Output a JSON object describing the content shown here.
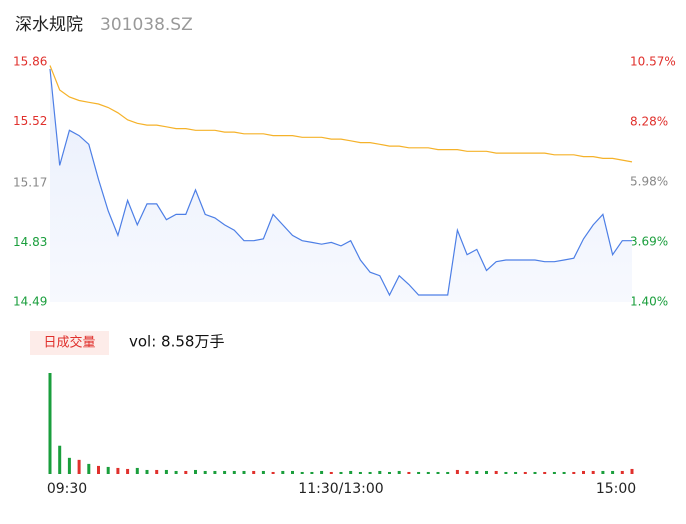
{
  "chart_data": [
    {
      "type": "line",
      "title": "深水规院",
      "subtitle": "301038.SZ",
      "x": [
        0,
        4,
        8,
        12,
        16,
        20,
        24,
        28,
        32,
        36,
        40,
        44,
        48,
        52,
        56,
        60,
        64,
        68,
        72,
        76,
        80,
        84,
        88,
        92,
        96,
        100,
        104,
        108,
        112,
        116,
        120,
        124,
        128,
        132,
        136,
        140,
        144,
        148,
        152,
        156,
        160,
        164,
        168,
        172,
        176,
        180,
        184,
        188,
        192,
        196,
        200,
        204,
        208,
        212,
        216,
        220,
        224,
        228,
        232,
        236,
        240
      ],
      "xlim": [
        0,
        240
      ],
      "series": [
        {
          "color": "#4d7fe6",
          "values": [
            15.82,
            15.27,
            15.47,
            15.44,
            15.39,
            15.19,
            15.01,
            14.87,
            15.07,
            14.93,
            15.05,
            15.05,
            14.96,
            14.99,
            14.99,
            15.13,
            14.99,
            14.97,
            14.93,
            14.9,
            14.84,
            14.84,
            14.85,
            14.99,
            14.93,
            14.87,
            14.84,
            14.83,
            14.82,
            14.83,
            14.81,
            14.84,
            14.73,
            14.66,
            14.64,
            14.53,
            14.64,
            14.59,
            14.53,
            14.53,
            14.53,
            14.53,
            14.9,
            14.76,
            14.79,
            14.67,
            14.72,
            14.73,
            14.73,
            14.73,
            14.73,
            14.72,
            14.72,
            14.73,
            14.74,
            14.85,
            14.93,
            14.99,
            14.76,
            14.84,
            14.84
          ]
        },
        {
          "color": "#f5b22a",
          "values": [
            15.84,
            15.7,
            15.66,
            15.64,
            15.63,
            15.62,
            15.6,
            15.57,
            15.53,
            15.51,
            15.5,
            15.5,
            15.49,
            15.48,
            15.48,
            15.47,
            15.47,
            15.47,
            15.46,
            15.46,
            15.45,
            15.45,
            15.45,
            15.44,
            15.44,
            15.44,
            15.43,
            15.43,
            15.43,
            15.42,
            15.42,
            15.41,
            15.4,
            15.4,
            15.39,
            15.38,
            15.38,
            15.37,
            15.37,
            15.37,
            15.36,
            15.36,
            15.36,
            15.35,
            15.35,
            15.35,
            15.34,
            15.34,
            15.34,
            15.34,
            15.34,
            15.34,
            15.33,
            15.33,
            15.33,
            15.32,
            15.32,
            15.31,
            15.31,
            15.3,
            15.29
          ]
        }
      ],
      "ylim": [
        14.49,
        15.86
      ],
      "yticks": [
        15.86,
        15.52,
        15.17,
        14.83,
        14.49
      ],
      "ytick_colors": [
        "#e0302c",
        "#e0302c",
        "#888888",
        "#1a9e3c",
        "#1a9e3c"
      ],
      "y2lim": [
        1.4,
        10.57
      ],
      "y2ticks": [
        {
          "value": 10.57,
          "label": "10.57%"
        },
        {
          "value": 8.28,
          "label": "8.28%"
        },
        {
          "value": 5.98,
          "label": "5.98%"
        },
        {
          "value": 3.69,
          "label": "3.69%"
        },
        {
          "value": 1.4,
          "label": "1.40%"
        }
      ],
      "y2tick_colors": [
        "#e0302c",
        "#e0302c",
        "#888888",
        "#1a9e3c",
        "#1a9e3c"
      ],
      "grid": false
    },
    {
      "type": "bar",
      "label": "日成交量",
      "annotation": "vol: 8.58万手",
      "x": [
        0,
        4,
        8,
        12,
        16,
        20,
        24,
        28,
        32,
        36,
        40,
        44,
        48,
        52,
        56,
        60,
        64,
        68,
        72,
        76,
        80,
        84,
        88,
        92,
        96,
        100,
        104,
        108,
        112,
        116,
        120,
        124,
        128,
        132,
        136,
        140,
        144,
        148,
        152,
        156,
        160,
        164,
        168,
        172,
        176,
        180,
        184,
        188,
        192,
        196,
        200,
        204,
        208,
        212,
        216,
        220,
        224,
        228,
        232,
        236,
        240
      ],
      "xlim": [
        0,
        240
      ],
      "values": [
        100,
        28,
        16,
        14,
        10,
        8,
        7,
        6,
        5,
        6,
        4,
        4,
        4,
        3,
        3,
        4,
        3,
        3,
        3,
        3,
        3,
        3,
        3,
        2,
        3,
        3,
        2,
        2,
        3,
        2,
        2,
        3,
        2,
        2,
        3,
        2,
        3,
        2,
        2,
        2,
        2,
        2,
        4,
        3,
        3,
        3,
        3,
        2,
        2,
        2,
        2,
        2,
        2,
        2,
        2,
        3,
        3,
        3,
        3,
        3,
        5
      ],
      "colors": [
        "#1a9e3c",
        "#1a9e3c",
        "#1a9e3c",
        "#e0302c",
        "#1a9e3c",
        "#e0302c",
        "#1a9e3c",
        "#e0302c",
        "#e0302c",
        "#1a9e3c",
        "#1a9e3c",
        "#e0302c",
        "#1a9e3c",
        "#1a9e3c",
        "#e0302c",
        "#1a9e3c",
        "#1a9e3c",
        "#1a9e3c",
        "#1a9e3c",
        "#1a9e3c",
        "#1a9e3c",
        "#e0302c",
        "#1a9e3c",
        "#e0302c",
        "#1a9e3c",
        "#1a9e3c",
        "#1a9e3c",
        "#1a9e3c",
        "#1a9e3c",
        "#e0302c",
        "#1a9e3c",
        "#1a9e3c",
        "#1a9e3c",
        "#1a9e3c",
        "#1a9e3c",
        "#1a9e3c",
        "#1a9e3c",
        "#e0302c",
        "#1a9e3c",
        "#1a9e3c",
        "#1a9e3c",
        "#1a9e3c",
        "#e0302c",
        "#e0302c",
        "#1a9e3c",
        "#1a9e3c",
        "#e0302c",
        "#1a9e3c",
        "#1a9e3c",
        "#e0302c",
        "#1a9e3c",
        "#e0302c",
        "#1a9e3c",
        "#1a9e3c",
        "#e0302c",
        "#e0302c",
        "#e0302c",
        "#1a9e3c",
        "#1a9e3c",
        "#e0302c",
        "#e0302c"
      ],
      "ylim": [
        0,
        100
      ],
      "xticks": [
        {
          "value": 0,
          "label": "09:30"
        },
        {
          "value": 120,
          "label": "11:30/13:00"
        },
        {
          "value": 240,
          "label": "15:00"
        }
      ]
    }
  ]
}
